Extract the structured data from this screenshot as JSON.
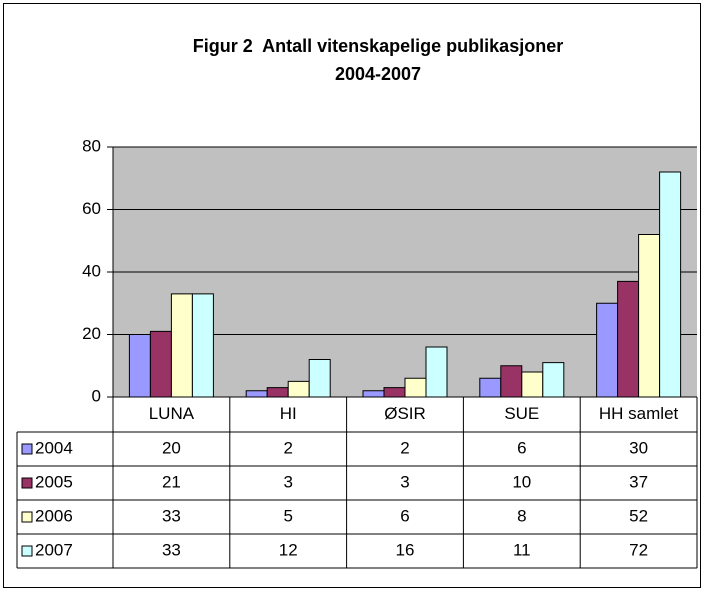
{
  "chart_data": {
    "type": "bar",
    "title": [
      "Figur 2  Antall vitenskapelige publikasjoner",
      "2004-2007"
    ],
    "categories": [
      "LUNA",
      "HI",
      "ØSIR",
      "SUE",
      "HH samlet"
    ],
    "series": [
      {
        "name": "2004",
        "color": "#9999ff",
        "values": [
          20,
          2,
          2,
          6,
          30
        ]
      },
      {
        "name": "2005",
        "color": "#993366",
        "values": [
          21,
          3,
          3,
          10,
          37
        ]
      },
      {
        "name": "2006",
        "color": "#ffffcc",
        "values": [
          33,
          5,
          6,
          8,
          52
        ]
      },
      {
        "name": "2007",
        "color": "#ccffff",
        "values": [
          33,
          12,
          16,
          11,
          72
        ]
      }
    ],
    "ylim": [
      0,
      80
    ],
    "yticks": [
      0,
      20,
      40,
      60,
      80
    ],
    "grid": true,
    "data_table": true
  }
}
